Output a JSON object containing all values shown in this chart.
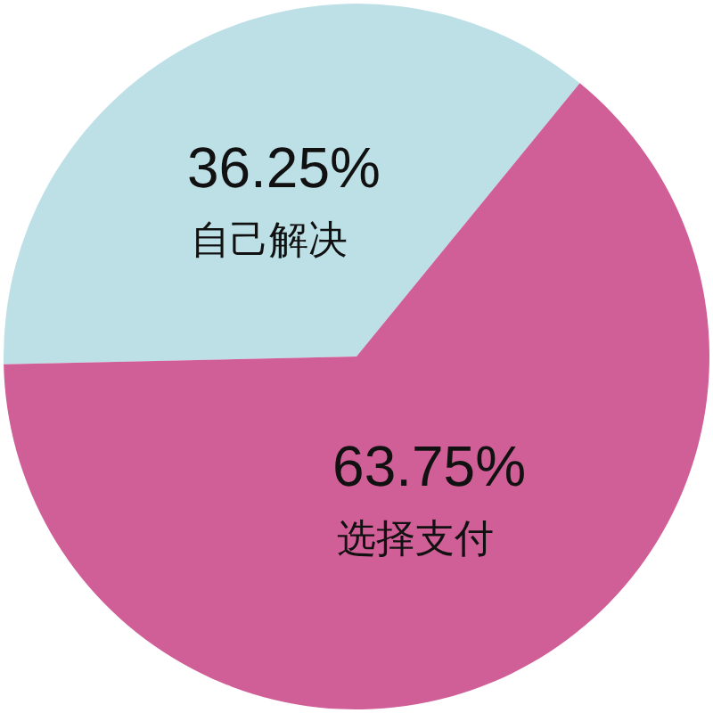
{
  "chart_data": {
    "type": "pie",
    "categories": [
      "自己解决",
      "选择支付"
    ],
    "values": [
      36.25,
      63.75
    ],
    "colors": [
      "#bce0e6",
      "#d15f97"
    ],
    "value_labels": [
      "36.25%",
      "63.75%"
    ],
    "legend": false
  }
}
